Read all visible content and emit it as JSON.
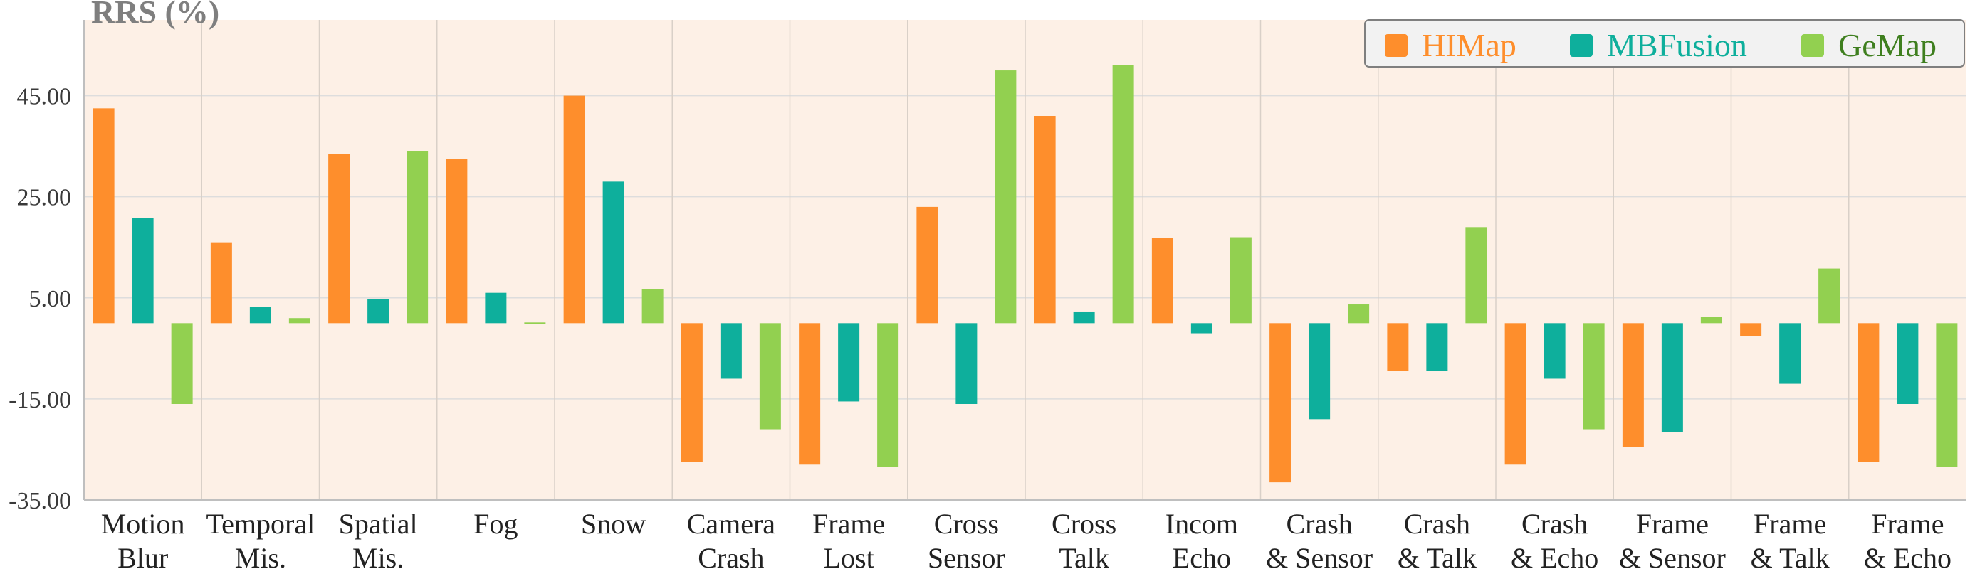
{
  "chart_data": {
    "type": "bar",
    "ylabel": "RRS (%)",
    "ylim": [
      -35,
      60
    ],
    "yticks": [
      "45.00",
      "25.00",
      "5.00",
      "-15.00",
      "-35.00"
    ],
    "ytick_values": [
      45,
      25,
      5,
      -15,
      -35
    ],
    "grid": true,
    "legend_position": "top-right",
    "background_color": "#fdf0e6",
    "categories": [
      [
        "Motion",
        "Blur"
      ],
      [
        "Temporal",
        "Mis."
      ],
      [
        "Spatial",
        "Mis."
      ],
      [
        "Fog",
        ""
      ],
      [
        "Snow",
        ""
      ],
      [
        "Camera",
        "Crash"
      ],
      [
        "Frame",
        "Lost"
      ],
      [
        "Cross",
        "Sensor"
      ],
      [
        "Cross",
        "Talk"
      ],
      [
        "Incom",
        "Echo"
      ],
      [
        "Crash",
        "& Sensor"
      ],
      [
        "Crash",
        "& Talk"
      ],
      [
        "Crash",
        "& Echo"
      ],
      [
        "Frame",
        "& Sensor"
      ],
      [
        "Frame",
        "& Talk"
      ],
      [
        "Frame",
        "& Echo"
      ]
    ],
    "series": [
      {
        "name": "HIMap",
        "color": "#fe8e2c",
        "values": [
          42.5,
          16.0,
          33.5,
          32.5,
          45.0,
          -27.5,
          -28.0,
          23.0,
          41.0,
          16.8,
          -31.5,
          -9.5,
          -28.0,
          -24.5,
          -2.5,
          -27.5
        ]
      },
      {
        "name": "MBFusion",
        "color": "#0eaf9c",
        "values": [
          20.8,
          3.2,
          4.7,
          6.0,
          28.0,
          -11.0,
          -15.5,
          -16.0,
          2.3,
          -2.0,
          -19.0,
          -9.5,
          -11.0,
          -21.5,
          -12.0,
          -16.0
        ]
      },
      {
        "name": "GeMap",
        "color": "#92d050",
        "values": [
          -16.0,
          1.0,
          34.0,
          0.0,
          6.7,
          -21.0,
          -28.5,
          50.0,
          51.0,
          17.0,
          3.7,
          19.0,
          -21.0,
          1.3,
          10.8,
          -28.5
        ]
      }
    ]
  }
}
